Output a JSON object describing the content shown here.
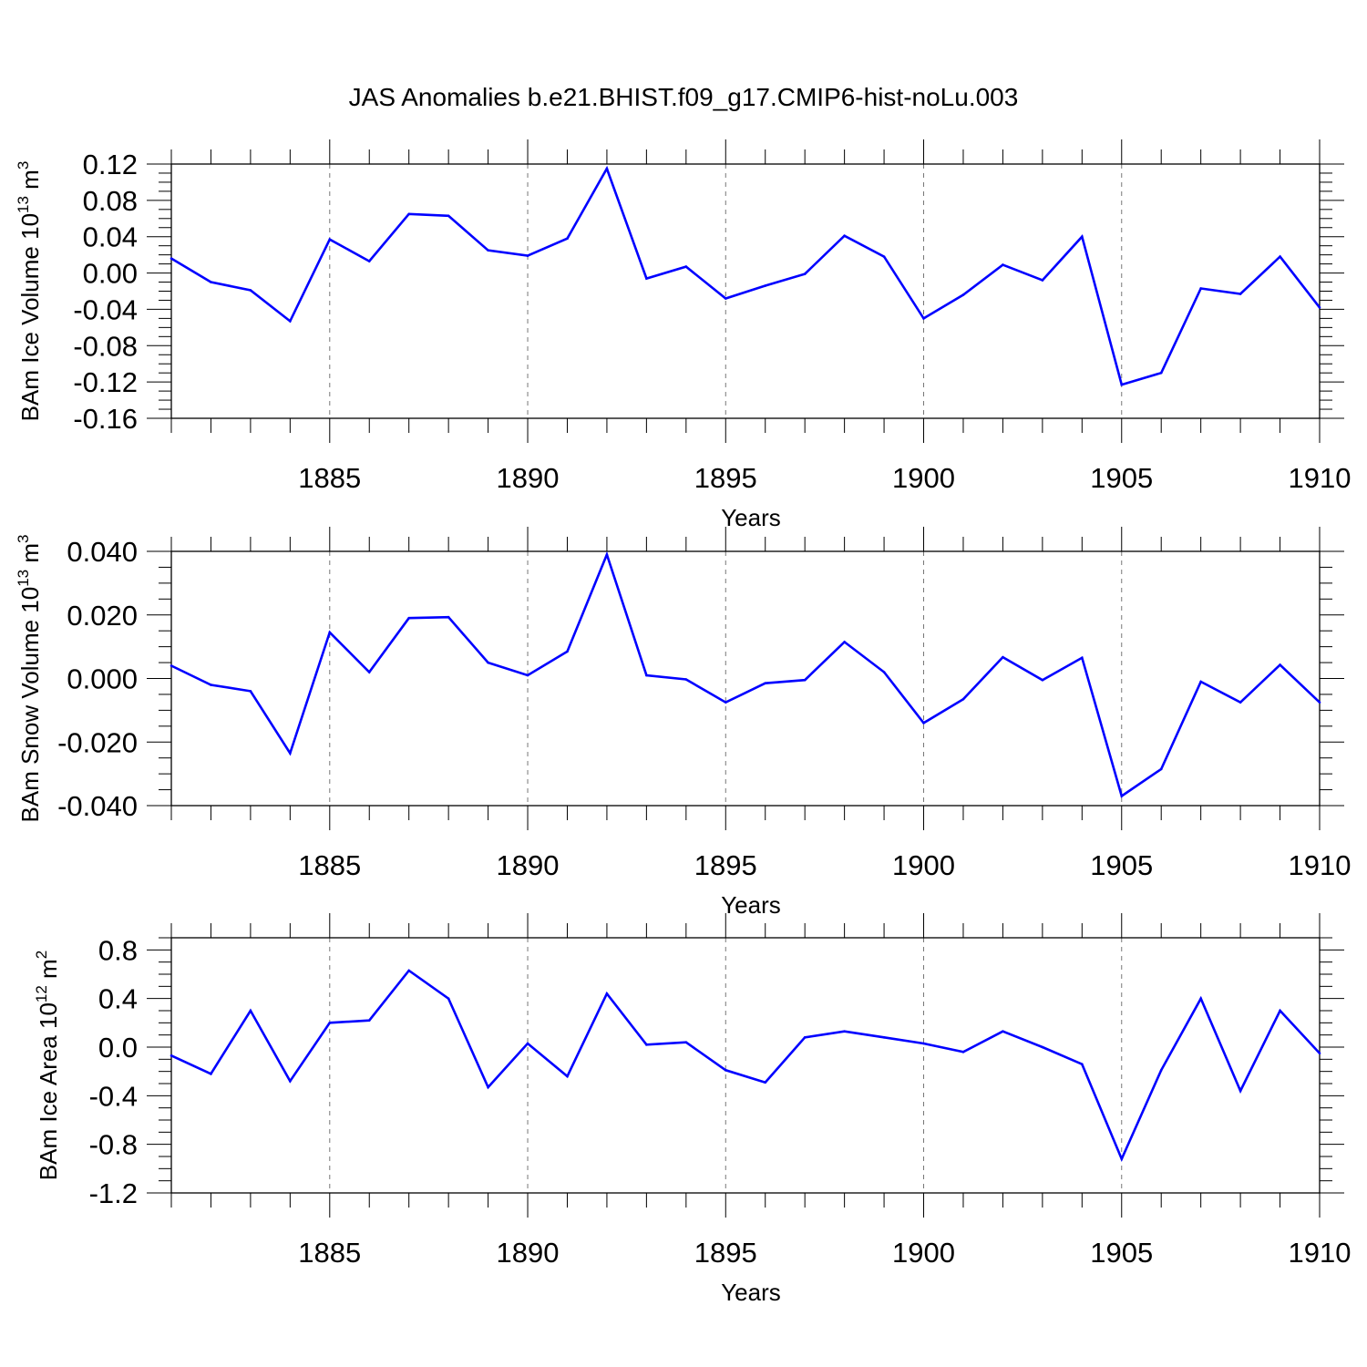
{
  "title": "JAS Anomalies b.e21.BHIST.f09_g17.CMIP6-hist-noLu.003",
  "chart_data": [
    {
      "type": "line",
      "ylabel": "BAm Ice Volume 10^13 m^3",
      "ylabel_base": "BAm Ice Volume 10",
      "ylabel_exp": "13",
      "ylabel_unit": "m",
      "ylabel_unit_exp": "3",
      "xlabel": "Years",
      "xlim": [
        1881,
        1910
      ],
      "ylim": [
        -0.16,
        0.12
      ],
      "yticks": [
        0.12,
        0.08,
        0.04,
        0.0,
        -0.04,
        -0.08,
        -0.12,
        -0.16
      ],
      "ytick_labels": [
        "0.12",
        "0.08",
        "0.04",
        "0.00",
        "-0.04",
        "-0.08",
        "-0.12",
        "-0.16"
      ],
      "xticks": [
        1885,
        1890,
        1895,
        1900,
        1905,
        1910
      ],
      "xtick_labels": [
        "1885",
        "1890",
        "1895",
        "1900",
        "1905",
        "1910"
      ],
      "grid": "vertical dashed at labeled years",
      "color": "#0000ff",
      "x": [
        1881,
        1882,
        1883,
        1884,
        1885,
        1886,
        1887,
        1888,
        1889,
        1890,
        1891,
        1892,
        1893,
        1894,
        1895,
        1896,
        1897,
        1898,
        1899,
        1900,
        1901,
        1902,
        1903,
        1904,
        1905,
        1906,
        1907,
        1908,
        1909,
        1910
      ],
      "values": [
        0.016,
        -0.01,
        -0.019,
        -0.053,
        0.037,
        0.013,
        0.065,
        0.063,
        0.025,
        0.019,
        0.038,
        0.115,
        -0.006,
        0.007,
        -0.028,
        -0.014,
        -0.001,
        0.041,
        0.018,
        -0.05,
        -0.024,
        0.009,
        -0.008,
        0.04,
        -0.123,
        -0.11,
        -0.017,
        -0.023,
        0.018,
        -0.038
      ]
    },
    {
      "type": "line",
      "ylabel": "BAm Snow Volume 10^13 m^3",
      "ylabel_base": "BAm Snow Volume 10",
      "ylabel_exp": "13",
      "ylabel_unit": "m",
      "ylabel_unit_exp": "3",
      "xlabel": "Years",
      "xlim": [
        1881,
        1910
      ],
      "ylim": [
        -0.04,
        0.04
      ],
      "yticks": [
        0.04,
        0.02,
        0.0,
        -0.02,
        -0.04
      ],
      "ytick_labels": [
        "0.040",
        "0.020",
        "0.000",
        "-0.020",
        "-0.040"
      ],
      "xticks": [
        1885,
        1890,
        1895,
        1900,
        1905,
        1910
      ],
      "xtick_labels": [
        "1885",
        "1890",
        "1895",
        "1900",
        "1905",
        "1910"
      ],
      "grid": "vertical dashed at labeled years",
      "color": "#0000ff",
      "x": [
        1881,
        1882,
        1883,
        1884,
        1885,
        1886,
        1887,
        1888,
        1889,
        1890,
        1891,
        1892,
        1893,
        1894,
        1895,
        1896,
        1897,
        1898,
        1899,
        1900,
        1901,
        1902,
        1903,
        1904,
        1905,
        1906,
        1907,
        1908,
        1909,
        1910
      ],
      "values": [
        0.004,
        -0.002,
        -0.004,
        -0.0235,
        0.0145,
        0.002,
        0.019,
        0.0193,
        0.005,
        0.001,
        0.0085,
        0.039,
        0.001,
        -0.0003,
        -0.0075,
        -0.0015,
        -0.0005,
        0.0115,
        0.002,
        -0.014,
        -0.0065,
        0.0067,
        -0.0005,
        0.0065,
        -0.037,
        -0.0285,
        -0.001,
        -0.0075,
        0.0043,
        -0.0075
      ]
    },
    {
      "type": "line",
      "ylabel": "BAm Ice Area 10^12 m^2",
      "ylabel_base": "BAm Ice Area 10",
      "ylabel_exp": "12",
      "ylabel_unit": "m",
      "ylabel_unit_exp": "2",
      "xlabel": "Years",
      "xlim": [
        1881,
        1910
      ],
      "ylim": [
        -1.2,
        0.9
      ],
      "yticks": [
        0.8,
        0.4,
        0.0,
        -0.4,
        -0.8,
        -1.2
      ],
      "ytick_labels": [
        "0.8",
        "0.4",
        "0.0",
        "-0.4",
        "-0.8",
        "-1.2"
      ],
      "xticks": [
        1885,
        1890,
        1895,
        1900,
        1905,
        1910
      ],
      "xtick_labels": [
        "1885",
        "1890",
        "1895",
        "1900",
        "1905",
        "1910"
      ],
      "grid": "vertical dashed at labeled years",
      "color": "#0000ff",
      "x": [
        1881,
        1882,
        1883,
        1884,
        1885,
        1886,
        1887,
        1888,
        1889,
        1890,
        1891,
        1892,
        1893,
        1894,
        1895,
        1896,
        1897,
        1898,
        1899,
        1900,
        1901,
        1902,
        1903,
        1904,
        1905,
        1906,
        1907,
        1908,
        1909,
        1910
      ],
      "values": [
        -0.07,
        -0.22,
        0.3,
        -0.28,
        0.2,
        0.22,
        0.63,
        0.4,
        -0.33,
        0.03,
        -0.24,
        0.44,
        0.02,
        0.04,
        -0.19,
        -0.29,
        0.08,
        0.13,
        0.08,
        0.03,
        -0.04,
        0.13,
        0.0,
        -0.14,
        -0.92,
        -0.19,
        0.4,
        -0.36,
        0.3,
        -0.05
      ]
    }
  ]
}
